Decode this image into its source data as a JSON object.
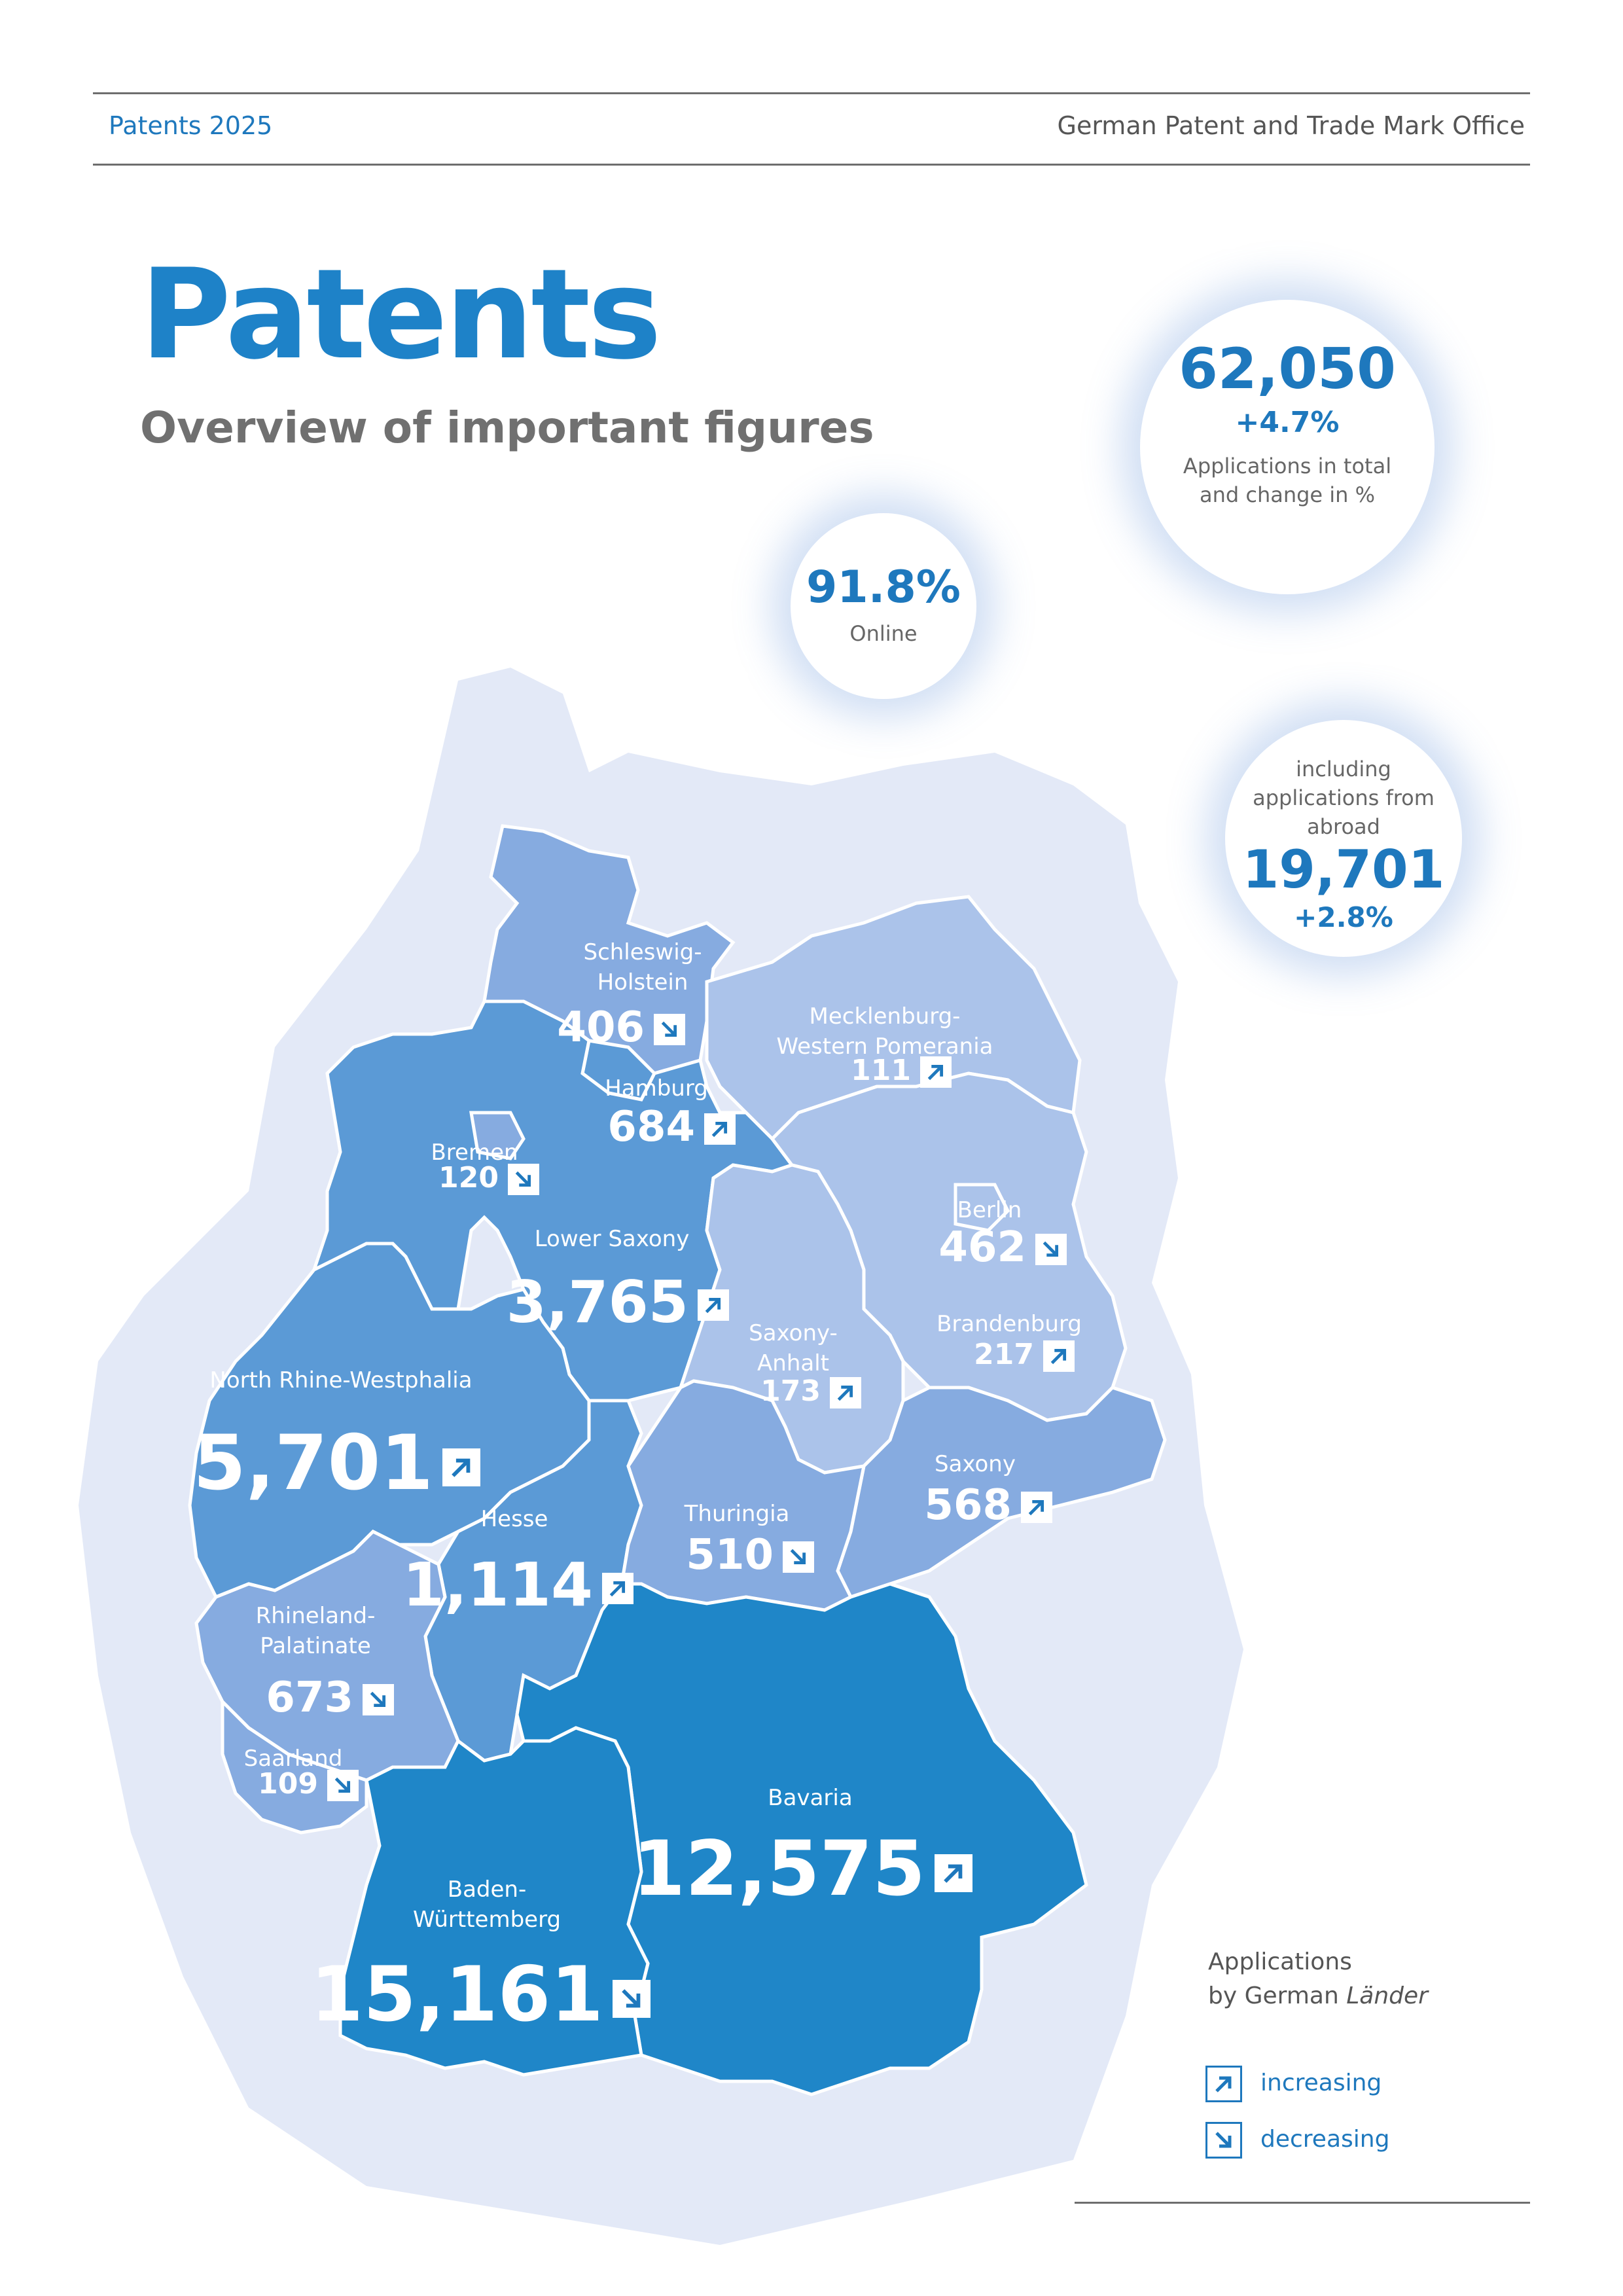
{
  "header": {
    "left": "Patents 2025",
    "right": "German Patent and Trade Mark Office"
  },
  "title": "Patents",
  "subtitle": "Overview of important figures",
  "stats": {
    "total": {
      "value": "62,050",
      "change": "+4.7%",
      "label_line1": "Applications in total",
      "label_line2": "and change in %"
    },
    "online": {
      "value": "91.8%",
      "label": "Online"
    },
    "abroad": {
      "label_line1": "including",
      "label_line2": "applications from",
      "label_line3": "abroad",
      "value": "19,701",
      "change": "+2.8%"
    }
  },
  "legend": {
    "title_line1": "Applications",
    "title_line2_plain": "by German ",
    "title_line2_italic": "Länder",
    "increasing": "increasing",
    "decreasing": "decreasing"
  },
  "colors": {
    "accent": "#1e78bd",
    "tier_top": "#1f86c8",
    "tier_high": "#5b9ad6",
    "tier_mid": "#86abe0",
    "tier_low": "#abc3ea",
    "background_land": "#e3e9f7"
  },
  "regions": [
    {
      "name_line1": "Schleswig-",
      "name_line2": "Holstein",
      "value": "406",
      "trend": "decreasing"
    },
    {
      "name_line1": "Mecklenburg-",
      "name_line2": "Western Pomerania",
      "value": "111",
      "trend": "increasing"
    },
    {
      "name_line1": "Hamburg",
      "name_line2": "",
      "value": "684",
      "trend": "increasing"
    },
    {
      "name_line1": "Bremen",
      "name_line2": "",
      "value": "120",
      "trend": "decreasing"
    },
    {
      "name_line1": "Lower Saxony",
      "name_line2": "",
      "value": "3,765",
      "trend": "increasing"
    },
    {
      "name_line1": "Berlin",
      "name_line2": "",
      "value": "462",
      "trend": "decreasing"
    },
    {
      "name_line1": "Brandenburg",
      "name_line2": "",
      "value": "217",
      "trend": "increasing"
    },
    {
      "name_line1": "Saxony-",
      "name_line2": "Anhalt",
      "value": "173",
      "trend": "increasing"
    },
    {
      "name_line1": "North Rhine-Westphalia",
      "name_line2": "",
      "value": "5,701",
      "trend": "increasing"
    },
    {
      "name_line1": "Saxony",
      "name_line2": "",
      "value": "568",
      "trend": "increasing"
    },
    {
      "name_line1": "Hesse",
      "name_line2": "",
      "value": "1,114",
      "trend": "increasing"
    },
    {
      "name_line1": "Thuringia",
      "name_line2": "",
      "value": "510",
      "trend": "decreasing"
    },
    {
      "name_line1": "Rhineland-",
      "name_line2": "Palatinate",
      "value": "673",
      "trend": "decreasing"
    },
    {
      "name_line1": "Saarland",
      "name_line2": "",
      "value": "109",
      "trend": "decreasing"
    },
    {
      "name_line1": "Bavaria",
      "name_line2": "",
      "value": "12,575",
      "trend": "increasing"
    },
    {
      "name_line1": "Baden-",
      "name_line2": "Württemberg",
      "value": "15,161",
      "trend": "decreasing"
    }
  ]
}
